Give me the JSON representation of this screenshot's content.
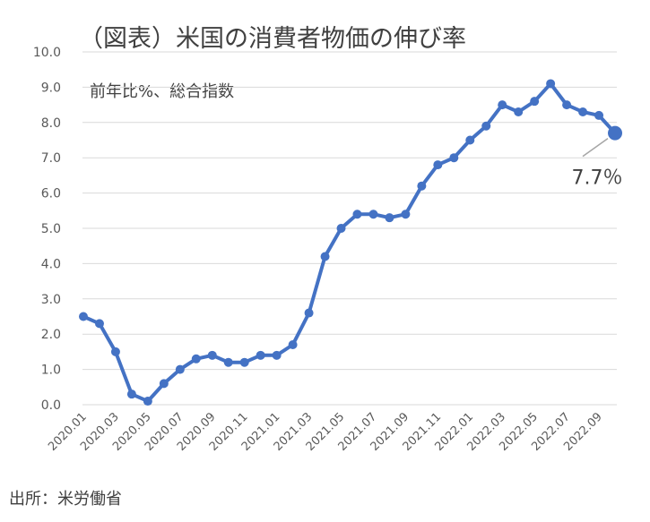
{
  "chart_data": {
    "type": "line",
    "title": "（図表）米国の消費者物価の伸び率",
    "subtitle": "前年比%、総合指数",
    "xlabel": "",
    "ylabel": "",
    "ylim": [
      0,
      10
    ],
    "yticks": [
      "0.0",
      "1.0",
      "2.0",
      "3.0",
      "4.0",
      "5.0",
      "6.0",
      "7.0",
      "8.0",
      "9.0",
      "10.0"
    ],
    "x_tick_labels": [
      "2020.01",
      "2020.03",
      "2020.05",
      "2020.07",
      "2020.09",
      "2020.11",
      "2021.01",
      "2021.03",
      "2021.05",
      "2021.07",
      "2021.09",
      "2021.11",
      "2022.01",
      "2022.03",
      "2022.05",
      "2022.07",
      "2022.09"
    ],
    "grid": true,
    "legend": "none",
    "series": [
      {
        "color": "#4472c4",
        "x": [
          "2020.01",
          "2020.02",
          "2020.03",
          "2020.04",
          "2020.05",
          "2020.06",
          "2020.07",
          "2020.08",
          "2020.09",
          "2020.10",
          "2020.11",
          "2020.12",
          "2021.01",
          "2021.02",
          "2021.03",
          "2021.04",
          "2021.05",
          "2021.06",
          "2021.07",
          "2021.08",
          "2021.09",
          "2021.10",
          "2021.11",
          "2021.12",
          "2022.01",
          "2022.02",
          "2022.03",
          "2022.04",
          "2022.05",
          "2022.06",
          "2022.07",
          "2022.08",
          "2022.09",
          "2022.10"
        ],
        "values": [
          2.5,
          2.3,
          1.5,
          0.3,
          0.1,
          0.6,
          1.0,
          1.3,
          1.4,
          1.2,
          1.2,
          1.4,
          1.4,
          1.7,
          2.6,
          4.2,
          5.0,
          5.4,
          5.4,
          5.3,
          5.4,
          6.2,
          6.8,
          7.0,
          7.5,
          7.9,
          8.5,
          8.3,
          8.6,
          9.1,
          8.5,
          8.3,
          8.2,
          7.7
        ]
      }
    ],
    "annotations": [
      {
        "text": "7.7％",
        "x": "2022.10",
        "y": 7.7
      }
    ],
    "source": "出所：米労働省"
  }
}
